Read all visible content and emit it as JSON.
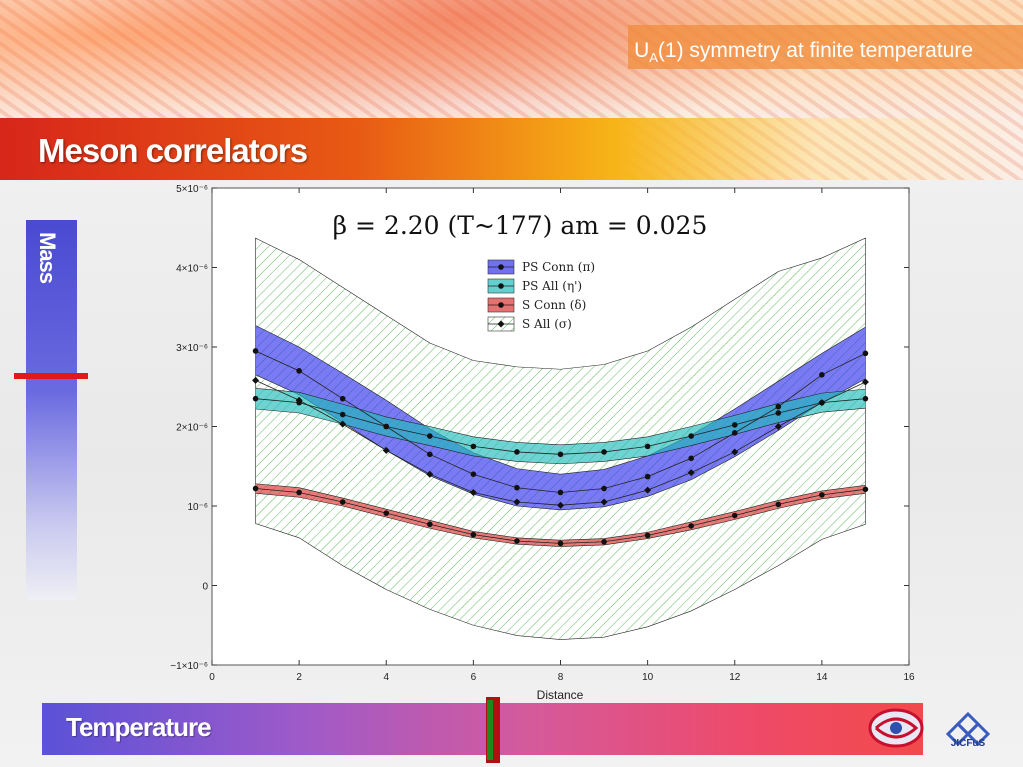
{
  "slide": {
    "subtitle_prefix": "U",
    "subtitle_sub": "A",
    "subtitle_rest": "(1) symmetry at finite temperature",
    "title": "Meson correlators",
    "mass_label": "Mass",
    "temperature_label": "Temperature",
    "logo_text": "JICFuS"
  },
  "chart_data": {
    "type": "line",
    "title": "β = 2.20 (T~177) am = 0.025",
    "xlabel": "Distance",
    "ylabel": "",
    "xlim": [
      0,
      16
    ],
    "ylim": [
      -1e-06,
      5e-06
    ],
    "x_ticks": [
      0,
      2,
      4,
      6,
      8,
      10,
      12,
      14,
      16
    ],
    "x_tick_labels": [
      "0",
      "2",
      "4",
      "6",
      "8",
      "10",
      "12",
      "14",
      "16"
    ],
    "y_ticks": [
      -1e-06,
      0,
      1e-06,
      2e-06,
      3e-06,
      4e-06,
      5e-06
    ],
    "y_tick_labels": [
      "−1×10⁻⁶",
      "0",
      "10⁻⁶",
      "2×10⁻⁶",
      "3×10⁻⁶",
      "4×10⁻⁶",
      "5×10⁻⁶"
    ],
    "legend_position": "top-center",
    "grid": false,
    "x": [
      1,
      2,
      3,
      4,
      5,
      6,
      7,
      8,
      9,
      10,
      11,
      12,
      13,
      14,
      15
    ],
    "series": [
      {
        "name": "PS Conn (π)",
        "color": "#3333ee",
        "band": "solid",
        "marker": "circle",
        "values": [
          2.95e-06,
          2.7e-06,
          2.35e-06,
          2e-06,
          1.65e-06,
          1.4e-06,
          1.23e-06,
          1.17e-06,
          1.22e-06,
          1.37e-06,
          1.6e-06,
          1.92e-06,
          2.25e-06,
          2.65e-06,
          2.92e-06
        ],
        "lower": [
          2.65e-06,
          2.4e-06,
          2.05e-06,
          1.7e-06,
          1.38e-06,
          1.15e-06,
          1e-06,
          9.5e-07,
          9.9e-07,
          1.12e-06,
          1.33e-06,
          1.62e-06,
          1.95e-06,
          2.3e-06,
          2.6e-06
        ],
        "upper": [
          3.27e-06,
          3e-06,
          2.67e-06,
          2.33e-06,
          1.97e-06,
          1.67e-06,
          1.47e-06,
          1.4e-06,
          1.46e-06,
          1.63e-06,
          1.89e-06,
          2.22e-06,
          2.57e-06,
          2.92e-06,
          3.25e-06
        ]
      },
      {
        "name": "PS All (η')",
        "color": "#22bbbb",
        "band": "solid",
        "marker": "circle",
        "values": [
          2.35e-06,
          2.3e-06,
          2.15e-06,
          2e-06,
          1.88e-06,
          1.75e-06,
          1.68e-06,
          1.65e-06,
          1.68e-06,
          1.75e-06,
          1.88e-06,
          2.02e-06,
          2.17e-06,
          2.3e-06,
          2.35e-06
        ],
        "lower": [
          2.22e-06,
          2.17e-06,
          2.03e-06,
          1.88e-06,
          1.76e-06,
          1.63e-06,
          1.56e-06,
          1.53e-06,
          1.56e-06,
          1.63e-06,
          1.76e-06,
          1.9e-06,
          2.05e-06,
          2.18e-06,
          2.23e-06
        ],
        "upper": [
          2.48e-06,
          2.43e-06,
          2.28e-06,
          2.12e-06,
          2e-06,
          1.87e-06,
          1.8e-06,
          1.77e-06,
          1.8e-06,
          1.87e-06,
          2e-06,
          2.14e-06,
          2.29e-06,
          2.42e-06,
          2.47e-06
        ]
      },
      {
        "name": "S Conn (δ)",
        "color": "#dd3333",
        "band": "solid",
        "marker": "circle",
        "values": [
          1.22e-06,
          1.17e-06,
          1.05e-06,
          9.1e-07,
          7.7e-07,
          6.4e-07,
          5.6e-07,
          5.3e-07,
          5.5e-07,
          6.3e-07,
          7.5e-07,
          8.8e-07,
          1.02e-06,
          1.14e-06,
          1.21e-06
        ],
        "lower": [
          1.16e-06,
          1.11e-06,
          1e-06,
          8.6e-07,
          7.2e-07,
          6e-07,
          5.2e-07,
          4.9e-07,
          5.1e-07,
          5.9e-07,
          7e-07,
          8.3e-07,
          9.7e-07,
          1.09e-06,
          1.16e-06
        ],
        "upper": [
          1.28e-06,
          1.23e-06,
          1.1e-06,
          9.6e-07,
          8.2e-07,
          6.8e-07,
          6e-07,
          5.7e-07,
          5.9e-07,
          6.7e-07,
          8e-07,
          9.3e-07,
          1.07e-06,
          1.19e-06,
          1.26e-06
        ]
      },
      {
        "name": "S All (σ)",
        "color": "#33aa33",
        "band": "hatched",
        "marker": "diamond",
        "values": [
          2.58e-06,
          2.33e-06,
          2.03e-06,
          1.7e-06,
          1.4e-06,
          1.17e-06,
          1.05e-06,
          1.01e-06,
          1.05e-06,
          1.2e-06,
          1.42e-06,
          1.68e-06,
          2e-06,
          2.3e-06,
          2.56e-06
        ],
        "lower": [
          7.8e-07,
          6e-07,
          2.5e-07,
          -5e-08,
          -3e-07,
          -5e-07,
          -6.3e-07,
          -6.8e-07,
          -6.5e-07,
          -5.2e-07,
          -3.2e-07,
          -5e-08,
          2.5e-07,
          5.8e-07,
          7.7e-07
        ],
        "upper": [
          4.37e-06,
          4.1e-06,
          3.75e-06,
          3.4e-06,
          3.05e-06,
          2.83e-06,
          2.75e-06,
          2.72e-06,
          2.78e-06,
          2.95e-06,
          3.25e-06,
          3.6e-06,
          3.95e-06,
          4.12e-06,
          4.37e-06
        ]
      }
    ]
  }
}
